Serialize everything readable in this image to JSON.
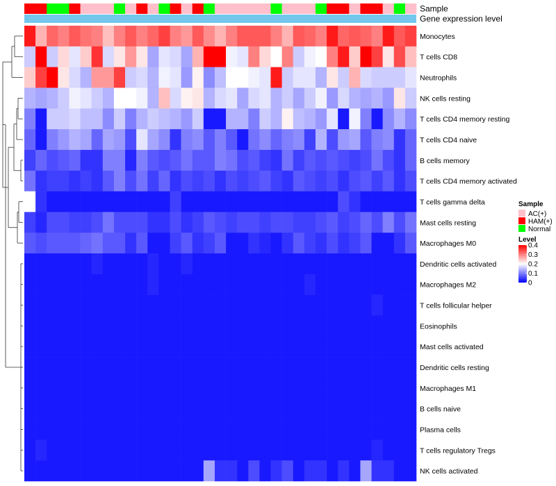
{
  "chart_data": {
    "type": "heatmap",
    "title": "",
    "annotation_rows": [
      {
        "label": "Sample",
        "kind": "sample"
      },
      {
        "label": "Gene expression level",
        "kind": "constant",
        "color": "#74c7ec"
      }
    ],
    "sample_groups": [
      {
        "name": "AC(+)",
        "color": "#ffc0cb"
      },
      {
        "name": "HAM(+)",
        "color": "#ff0000"
      },
      {
        "name": "Normal",
        "color": "#00ff00"
      }
    ],
    "columns": [
      {
        "sample": "HAM(+)"
      },
      {
        "sample": "HAM(+)"
      },
      {
        "sample": "Normal"
      },
      {
        "sample": "Normal"
      },
      {
        "sample": "HAM(+)"
      },
      {
        "sample": "AC(+)"
      },
      {
        "sample": "AC(+)"
      },
      {
        "sample": "AC(+)"
      },
      {
        "sample": "Normal"
      },
      {
        "sample": "AC(+)"
      },
      {
        "sample": "HAM(+)"
      },
      {
        "sample": "AC(+)"
      },
      {
        "sample": "Normal"
      },
      {
        "sample": "HAM(+)"
      },
      {
        "sample": "AC(+)"
      },
      {
        "sample": "HAM(+)"
      },
      {
        "sample": "Normal"
      },
      {
        "sample": "AC(+)"
      },
      {
        "sample": "AC(+)"
      },
      {
        "sample": "AC(+)"
      },
      {
        "sample": "AC(+)"
      },
      {
        "sample": "AC(+)"
      },
      {
        "sample": "Normal"
      },
      {
        "sample": "AC(+)"
      },
      {
        "sample": "AC(+)"
      },
      {
        "sample": "AC(+)"
      },
      {
        "sample": "Normal"
      },
      {
        "sample": "HAM(+)"
      },
      {
        "sample": "HAM(+)"
      },
      {
        "sample": "AC(+)"
      },
      {
        "sample": "HAM(+)"
      },
      {
        "sample": "HAM(+)"
      },
      {
        "sample": "AC(+)"
      },
      {
        "sample": "Normal"
      },
      {
        "sample": "AC(+)"
      }
    ],
    "rows": [
      "Monocytes",
      "T cells CD8",
      "Neutrophils",
      "NK cells resting",
      "T cells CD4 memory resting",
      "T cells CD4 naive",
      "B cells memory",
      "T cells CD4 memory activated",
      "T cells gamma delta",
      "Mast cells resting",
      "Macrophages M0",
      "Dendritic cells activated",
      "Macrophages M2",
      "T cells follicular helper",
      "Eosinophils",
      "Mast cells activated",
      "Dendritic cells resting",
      "Macrophages M1",
      "B cells naive",
      "Plasma cells",
      "T cells regulatory  Tregs",
      "NK cells activated"
    ],
    "values": [
      [
        0.38,
        0.26,
        0.32,
        0.3,
        0.33,
        0.31,
        0.3,
        0.25,
        0.3,
        0.33,
        0.3,
        0.32,
        0.35,
        0.3,
        0.28,
        0.33,
        0.29,
        0.26,
        0.3,
        0.33,
        0.33,
        0.33,
        0.3,
        0.26,
        0.33,
        0.32,
        0.3,
        0.38,
        0.32,
        0.33,
        0.32,
        0.3,
        0.38,
        0.33,
        0.35
      ],
      [
        0.16,
        0.4,
        0.16,
        0.23,
        0.18,
        0.24,
        0.36,
        0.17,
        0.22,
        0.28,
        0.22,
        0.13,
        0.18,
        0.17,
        0.13,
        0.26,
        0.4,
        0.4,
        0.19,
        0.18,
        0.3,
        0.23,
        0.2,
        0.3,
        0.16,
        0.19,
        0.2,
        0.3,
        0.38,
        0.24,
        0.4,
        0.35,
        0.22,
        0.34,
        0.25
      ],
      [
        0.24,
        0.35,
        0.4,
        0.22,
        0.17,
        0.14,
        0.28,
        0.28,
        0.35,
        0.16,
        0.17,
        0.14,
        0.19,
        0.18,
        0.12,
        0.21,
        0.11,
        0.15,
        0.2,
        0.2,
        0.19,
        0.18,
        0.38,
        0.16,
        0.18,
        0.18,
        0.14,
        0.22,
        0.16,
        0.26,
        0.17,
        0.16,
        0.16,
        0.16,
        0.18
      ],
      [
        0.14,
        0.13,
        0.14,
        0.16,
        0.19,
        0.18,
        0.16,
        0.14,
        0.2,
        0.2,
        0.19,
        0.14,
        0.25,
        0.17,
        0.21,
        0.22,
        0.14,
        0.17,
        0.18,
        0.13,
        0.17,
        0.18,
        0.14,
        0.16,
        0.13,
        0.16,
        0.19,
        0.12,
        0.17,
        0.14,
        0.13,
        0.14,
        0.12,
        0.22,
        0.16
      ],
      [
        0.1,
        0.02,
        0.16,
        0.16,
        0.17,
        0.15,
        0.15,
        0.11,
        0.16,
        0.1,
        0.14,
        0.16,
        0.15,
        0.14,
        0.12,
        0.16,
        0.02,
        0.02,
        0.14,
        0.14,
        0.1,
        0.16,
        0.14,
        0.21,
        0.15,
        0.14,
        0.12,
        0.18,
        0.02,
        0.19,
        0.1,
        0.02,
        0.11,
        0.14,
        0.11
      ],
      [
        0.08,
        0.02,
        0.1,
        0.12,
        0.14,
        0.13,
        0.08,
        0.13,
        0.12,
        0.06,
        0.18,
        0.13,
        0.11,
        0.04,
        0.1,
        0.11,
        0.07,
        0.1,
        0.07,
        0.02,
        0.09,
        0.11,
        0.08,
        0.1,
        0.11,
        0.05,
        0.14,
        0.06,
        0.12,
        0.13,
        0.07,
        0.1,
        0.11,
        0.04,
        0.08
      ],
      [
        0.05,
        0.08,
        0.06,
        0.07,
        0.08,
        0.04,
        0.04,
        0.1,
        0.1,
        0.03,
        0.1,
        0.07,
        0.06,
        0.07,
        0.09,
        0.07,
        0.07,
        0.1,
        0.09,
        0.06,
        0.07,
        0.05,
        0.04,
        0.09,
        0.05,
        0.07,
        0.06,
        0.07,
        0.06,
        0.05,
        0.06,
        0.09,
        0.06,
        0.04,
        0.08
      ],
      [
        0.09,
        0.04,
        0.05,
        0.05,
        0.04,
        0.05,
        0.04,
        0.07,
        0.1,
        0.06,
        0.09,
        0.05,
        0.08,
        0.04,
        0.06,
        0.05,
        0.06,
        0.04,
        0.06,
        0.05,
        0.06,
        0.07,
        0.05,
        0.04,
        0.07,
        0.06,
        0.05,
        0.06,
        0.04,
        0.06,
        0.07,
        0.05,
        0.07,
        0.04,
        0.06
      ],
      [
        0.2,
        0.04,
        0.02,
        0.02,
        0.02,
        0.02,
        0.02,
        0.02,
        0.02,
        0.02,
        0.02,
        0.02,
        0.02,
        0.05,
        0.02,
        0.02,
        0.02,
        0.02,
        0.02,
        0.02,
        0.02,
        0.02,
        0.02,
        0.02,
        0.02,
        0.02,
        0.02,
        0.02,
        0.06,
        0.04,
        0.02,
        0.02,
        0.02,
        0.02,
        0.02
      ],
      [
        0.05,
        0.03,
        0.06,
        0.06,
        0.05,
        0.05,
        0.06,
        0.09,
        0.06,
        0.06,
        0.06,
        0.04,
        0.04,
        0.06,
        0.04,
        0.05,
        0.07,
        0.06,
        0.05,
        0.06,
        0.06,
        0.05,
        0.06,
        0.06,
        0.05,
        0.05,
        0.06,
        0.07,
        0.05,
        0.06,
        0.08,
        0.06,
        0.1,
        0.06,
        0.09
      ],
      [
        0.07,
        0.06,
        0.07,
        0.07,
        0.07,
        0.08,
        0.09,
        0.07,
        0.07,
        0.04,
        0.07,
        0.02,
        0.02,
        0.05,
        0.07,
        0.04,
        0.05,
        0.07,
        0.02,
        0.02,
        0.04,
        0.03,
        0.02,
        0.04,
        0.07,
        0.05,
        0.04,
        0.06,
        0.04,
        0.05,
        0.07,
        0.02,
        0.02,
        0.04,
        0.07
      ],
      [
        0.02,
        0.02,
        0.02,
        0.02,
        0.02,
        0.02,
        0.03,
        0.02,
        0.02,
        0.02,
        0.02,
        0.03,
        0.02,
        0.02,
        0.03,
        0.02,
        0.02,
        0.02,
        0.02,
        0.02,
        0.02,
        0.02,
        0.02,
        0.02,
        0.02,
        0.02,
        0.02,
        0.02,
        0.02,
        0.02,
        0.02,
        0.02,
        0.02,
        0.02,
        0.02
      ],
      [
        0.02,
        0.02,
        0.02,
        0.02,
        0.02,
        0.02,
        0.02,
        0.02,
        0.02,
        0.02,
        0.02,
        0.03,
        0.02,
        0.02,
        0.02,
        0.02,
        0.02,
        0.02,
        0.02,
        0.02,
        0.02,
        0.02,
        0.02,
        0.02,
        0.02,
        0.03,
        0.02,
        0.02,
        0.02,
        0.02,
        0.02,
        0.02,
        0.02,
        0.02,
        0.02
      ],
      [
        0.02,
        0.02,
        0.02,
        0.02,
        0.02,
        0.02,
        0.02,
        0.02,
        0.02,
        0.02,
        0.02,
        0.02,
        0.02,
        0.02,
        0.02,
        0.02,
        0.02,
        0.02,
        0.02,
        0.02,
        0.02,
        0.02,
        0.02,
        0.02,
        0.02,
        0.02,
        0.02,
        0.02,
        0.02,
        0.02,
        0.02,
        0.03,
        0.02,
        0.02,
        0.02
      ],
      [
        0.02,
        0.02,
        0.02,
        0.02,
        0.02,
        0.02,
        0.02,
        0.02,
        0.02,
        0.02,
        0.02,
        0.02,
        0.02,
        0.02,
        0.02,
        0.02,
        0.02,
        0.02,
        0.02,
        0.02,
        0.02,
        0.02,
        0.02,
        0.02,
        0.02,
        0.02,
        0.02,
        0.02,
        0.02,
        0.02,
        0.02,
        0.02,
        0.02,
        0.02,
        0.02
      ],
      [
        0.02,
        0.02,
        0.02,
        0.02,
        0.02,
        0.02,
        0.02,
        0.02,
        0.02,
        0.02,
        0.02,
        0.02,
        0.02,
        0.02,
        0.02,
        0.02,
        0.02,
        0.02,
        0.02,
        0.02,
        0.02,
        0.02,
        0.02,
        0.02,
        0.02,
        0.02,
        0.02,
        0.02,
        0.02,
        0.02,
        0.02,
        0.02,
        0.02,
        0.02,
        0.02
      ],
      [
        0.02,
        0.02,
        0.02,
        0.02,
        0.02,
        0.02,
        0.02,
        0.02,
        0.02,
        0.02,
        0.02,
        0.02,
        0.02,
        0.02,
        0.02,
        0.02,
        0.02,
        0.02,
        0.02,
        0.02,
        0.02,
        0.02,
        0.02,
        0.02,
        0.02,
        0.02,
        0.02,
        0.02,
        0.02,
        0.02,
        0.02,
        0.02,
        0.02,
        0.02,
        0.02
      ],
      [
        0.02,
        0.02,
        0.02,
        0.02,
        0.02,
        0.02,
        0.02,
        0.02,
        0.02,
        0.02,
        0.02,
        0.02,
        0.02,
        0.02,
        0.02,
        0.02,
        0.02,
        0.02,
        0.02,
        0.02,
        0.02,
        0.02,
        0.02,
        0.02,
        0.02,
        0.02,
        0.02,
        0.02,
        0.02,
        0.02,
        0.02,
        0.02,
        0.02,
        0.02,
        0.02
      ],
      [
        0.02,
        0.02,
        0.02,
        0.02,
        0.02,
        0.02,
        0.02,
        0.02,
        0.02,
        0.02,
        0.02,
        0.02,
        0.02,
        0.02,
        0.02,
        0.02,
        0.02,
        0.02,
        0.02,
        0.02,
        0.02,
        0.02,
        0.02,
        0.02,
        0.02,
        0.02,
        0.02,
        0.02,
        0.02,
        0.02,
        0.02,
        0.02,
        0.02,
        0.02,
        0.02
      ],
      [
        0.02,
        0.02,
        0.02,
        0.02,
        0.02,
        0.02,
        0.02,
        0.02,
        0.02,
        0.02,
        0.02,
        0.02,
        0.02,
        0.02,
        0.02,
        0.02,
        0.02,
        0.02,
        0.02,
        0.02,
        0.02,
        0.02,
        0.02,
        0.02,
        0.02,
        0.02,
        0.02,
        0.02,
        0.02,
        0.02,
        0.02,
        0.02,
        0.02,
        0.02,
        0.02
      ],
      [
        0.02,
        0.03,
        0.02,
        0.02,
        0.02,
        0.02,
        0.02,
        0.02,
        0.02,
        0.02,
        0.02,
        0.02,
        0.02,
        0.02,
        0.02,
        0.02,
        0.02,
        0.02,
        0.02,
        0.02,
        0.02,
        0.02,
        0.02,
        0.02,
        0.02,
        0.02,
        0.02,
        0.02,
        0.02,
        0.02,
        0.02,
        0.03,
        0.02,
        0.02,
        0.02
      ],
      [
        0.02,
        0.02,
        0.02,
        0.02,
        0.02,
        0.02,
        0.02,
        0.02,
        0.02,
        0.02,
        0.02,
        0.02,
        0.02,
        0.02,
        0.02,
        0.02,
        0.13,
        0.04,
        0.04,
        0.02,
        0.06,
        0.02,
        0.04,
        0.06,
        0.02,
        0.04,
        0.04,
        0.02,
        0.04,
        0.02,
        0.13,
        0.04,
        0.04,
        0.02,
        0.02
      ]
    ],
    "color_scale": {
      "min": 0,
      "mid": 0.2,
      "max": 0.4,
      "low_color": "#0000ff",
      "mid_color": "#ffffff",
      "high_color": "#ff0000"
    },
    "legends": {
      "sample_title": "Sample",
      "level_title": "Level",
      "level_ticks": [
        "0.4",
        "0.3",
        "0.2",
        "0.1",
        "0"
      ],
      "level_tick_values": [
        0.4,
        0.3,
        0.2,
        0.1,
        0
      ]
    },
    "dendrogram": "row"
  }
}
